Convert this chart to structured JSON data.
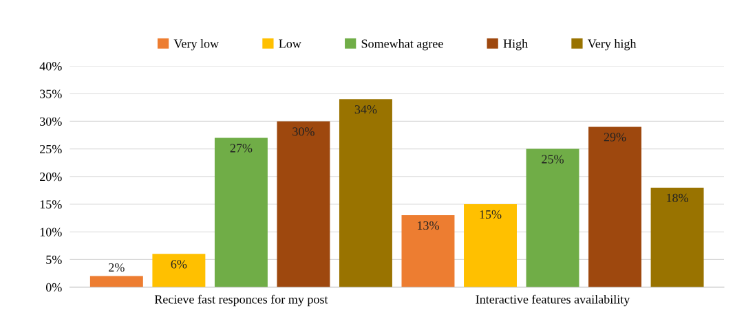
{
  "chart_data": {
    "type": "bar",
    "categories": [
      "Recieve fast responces for my post",
      "Interactive features availability"
    ],
    "series": [
      {
        "name": "Very low",
        "color": "#ed7d31",
        "values": [
          2,
          13
        ],
        "value_labels": [
          "2%",
          "13%"
        ]
      },
      {
        "name": "Low",
        "color": "#ffc000",
        "values": [
          6,
          15
        ],
        "value_labels": [
          "6%",
          "15%"
        ]
      },
      {
        "name": "Somewhat agree",
        "color": "#70ad47",
        "values": [
          27,
          25
        ],
        "value_labels": [
          "27%",
          "25%"
        ]
      },
      {
        "name": "High",
        "color": "#9e480e",
        "values": [
          30,
          29
        ],
        "value_labels": [
          "30%",
          "29%"
        ]
      },
      {
        "name": "Very high",
        "color": "#997300",
        "values": [
          34,
          18
        ],
        "value_labels": [
          "34%",
          "18%"
        ]
      }
    ],
    "ylim": [
      0,
      40
    ],
    "yticks": [
      {
        "value": 0,
        "label": "0%"
      },
      {
        "value": 5,
        "label": "5%"
      },
      {
        "value": 10,
        "label": "10%"
      },
      {
        "value": 15,
        "label": "15%"
      },
      {
        "value": 20,
        "label": "20%"
      },
      {
        "value": 25,
        "label": "25%"
      },
      {
        "value": 30,
        "label": "30%"
      },
      {
        "value": 35,
        "label": "35%"
      },
      {
        "value": 40,
        "label": "40%"
      }
    ],
    "grid": "y",
    "legend": "top"
  }
}
